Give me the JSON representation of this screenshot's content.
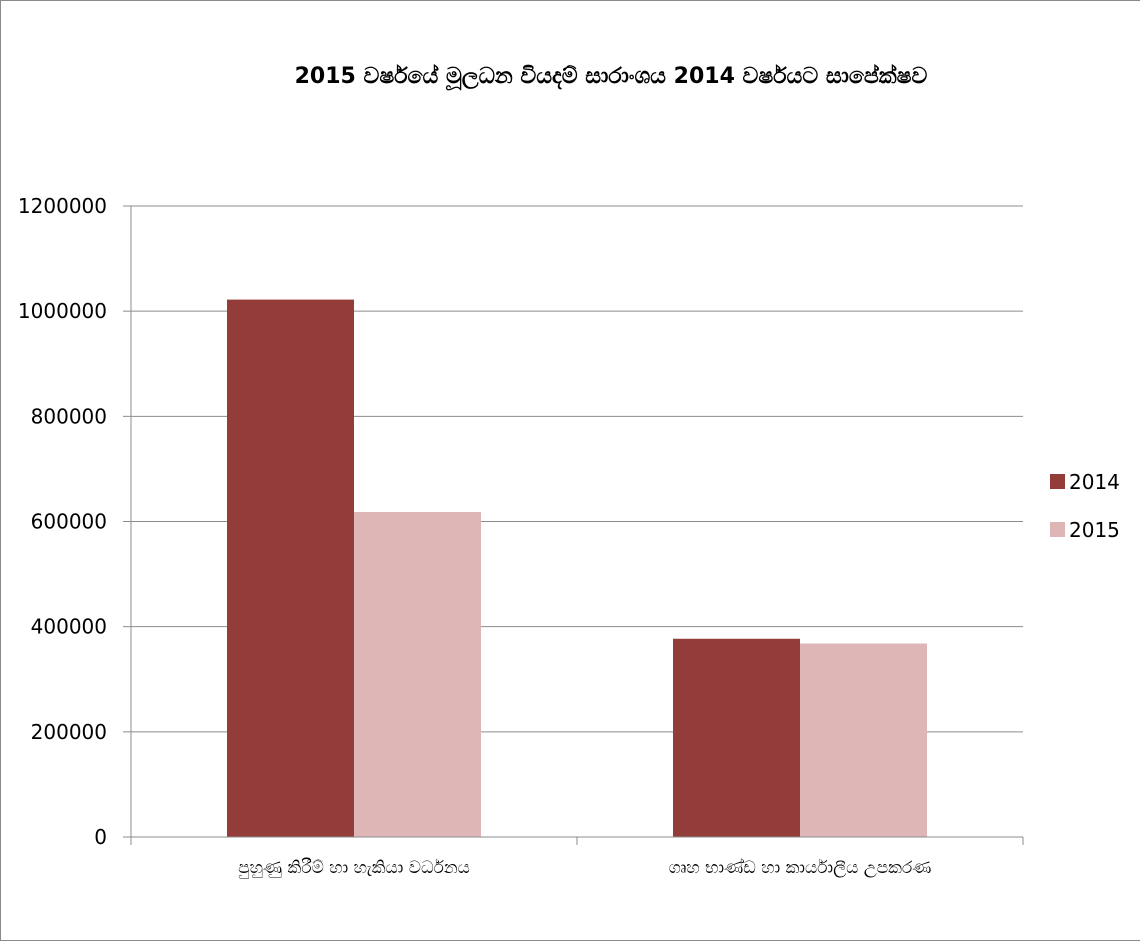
{
  "chart_data": {
    "type": "bar",
    "title": "2015 වර්ෂයේ මූලධන වියදම් සාරාංශය 2014 වර්ෂයට සාපේක්ෂව",
    "xlabel": "",
    "ylabel": "",
    "categories": [
      "පුහුණු කිරීම් හා හැකියා වර්ධනය",
      "ගෘහ භාණ්ඩ හා කාර්යාලීය උපකරණ"
    ],
    "series": [
      {
        "name": "2014",
        "color": "#943c3a",
        "values": [
          1022000,
          377000
        ]
      },
      {
        "name": "2015",
        "color": "#deb6b6",
        "values": [
          618000,
          368000
        ]
      }
    ],
    "ylim": [
      0,
      1200000
    ],
    "yticks": [
      0,
      200000,
      400000,
      600000,
      800000,
      1000000,
      1200000
    ],
    "ytick_labels": [
      "0",
      "200000",
      "400000",
      "600000",
      "800000",
      "1000000",
      "1200000"
    ],
    "grid": true,
    "legend_position": "right"
  }
}
